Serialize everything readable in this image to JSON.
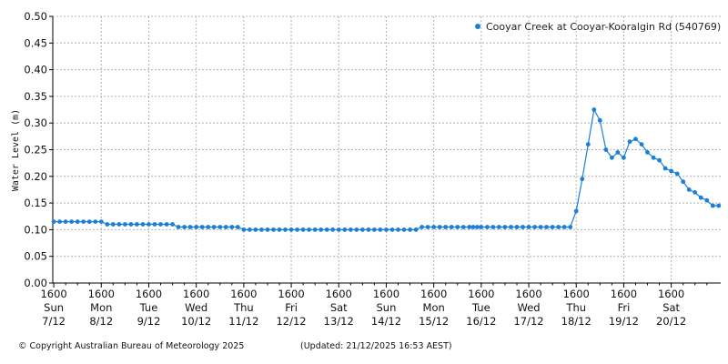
{
  "colors": {
    "series": "#1a7fd9",
    "grid": "#b4b4b4",
    "axis": "#000000"
  },
  "legend": {
    "label": "Cooyar Creek at Cooyar-Kooralgin Rd (540769)",
    "icon": "dot-icon"
  },
  "footer": {
    "copyright": "© Copyright Australian Bureau of Meteorology 2025",
    "updated": "(Updated: 21/12/2025 16:53 AEST)"
  },
  "chart_data": {
    "type": "line",
    "title": "",
    "xlabel": "",
    "ylabel": "Water Level (m)",
    "ylim": [
      0,
      0.5
    ],
    "yticks": [
      "0.00",
      "0.05",
      "0.10",
      "0.15",
      "0.20",
      "0.25",
      "0.30",
      "0.35",
      "0.40",
      "0.45",
      "0.50"
    ],
    "xlim_hours": [
      -0.5,
      337
    ],
    "x_unit": "hours from 7/12 1600",
    "xticks": [
      {
        "time": "1600",
        "day": "Sun",
        "date": "7/12"
      },
      {
        "time": "1600",
        "day": "Mon",
        "date": "8/12"
      },
      {
        "time": "1600",
        "day": "Tue",
        "date": "9/12"
      },
      {
        "time": "1600",
        "day": "Wed",
        "date": "10/12"
      },
      {
        "time": "1600",
        "day": "Thu",
        "date": "11/12"
      },
      {
        "time": "1600",
        "day": "Fri",
        "date": "12/12"
      },
      {
        "time": "1600",
        "day": "Sat",
        "date": "13/12"
      },
      {
        "time": "1600",
        "day": "Sun",
        "date": "14/12"
      },
      {
        "time": "1600",
        "day": "Mon",
        "date": "15/12"
      },
      {
        "time": "1600",
        "day": "Tue",
        "date": "16/12"
      },
      {
        "time": "1600",
        "day": "Wed",
        "date": "17/12"
      },
      {
        "time": "1600",
        "day": "Thu",
        "date": "18/12"
      },
      {
        "time": "1600",
        "day": "Fri",
        "date": "19/12"
      },
      {
        "time": "1600",
        "day": "Sat",
        "date": "20/12"
      }
    ],
    "grid": true,
    "legend_position": "top-right",
    "series": [
      {
        "name": "Cooyar Creek at Cooyar-Kooralgin Rd (540769)",
        "x": [
          0,
          3,
          6,
          9,
          12,
          15,
          18,
          21,
          24,
          27,
          30,
          33,
          36,
          39,
          42,
          45,
          48,
          51,
          54,
          57,
          60,
          63,
          66,
          69,
          72,
          75,
          78,
          81,
          84,
          87,
          90,
          93,
          96,
          99,
          102,
          105,
          108,
          111,
          114,
          117,
          120,
          123,
          126,
          129,
          132,
          135,
          138,
          141,
          144,
          147,
          150,
          153,
          156,
          159,
          162,
          165,
          168,
          171,
          174,
          177,
          180,
          183,
          186,
          189,
          192,
          195,
          198,
          201,
          204,
          207,
          210,
          212,
          214,
          216,
          219,
          222,
          225,
          228,
          231,
          234,
          237,
          240,
          243,
          246,
          249,
          252,
          255,
          258,
          261,
          264,
          267,
          270,
          273,
          276,
          279,
          282,
          285,
          288,
          291,
          294,
          297,
          300,
          303,
          306,
          309,
          312,
          315,
          318,
          321,
          324,
          327,
          330,
          333,
          336
        ],
        "y": [
          0.115,
          0.115,
          0.115,
          0.115,
          0.115,
          0.115,
          0.115,
          0.115,
          0.115,
          0.11,
          0.11,
          0.11,
          0.11,
          0.11,
          0.11,
          0.11,
          0.11,
          0.11,
          0.11,
          0.11,
          0.11,
          0.105,
          0.105,
          0.105,
          0.105,
          0.105,
          0.105,
          0.105,
          0.105,
          0.105,
          0.105,
          0.105,
          0.1,
          0.1,
          0.1,
          0.1,
          0.1,
          0.1,
          0.1,
          0.1,
          0.1,
          0.1,
          0.1,
          0.1,
          0.1,
          0.1,
          0.1,
          0.1,
          0.1,
          0.1,
          0.1,
          0.1,
          0.1,
          0.1,
          0.1,
          0.1,
          0.1,
          0.1,
          0.1,
          0.1,
          0.1,
          0.1,
          0.105,
          0.105,
          0.105,
          0.105,
          0.105,
          0.105,
          0.105,
          0.105,
          0.105,
          0.105,
          0.105,
          0.105,
          0.105,
          0.105,
          0.105,
          0.105,
          0.105,
          0.105,
          0.105,
          0.105,
          0.105,
          0.105,
          0.105,
          0.105,
          0.105,
          0.105,
          0.105,
          0.135,
          0.195,
          0.26,
          0.325,
          0.305,
          0.25,
          0.235,
          0.245,
          0.235,
          0.265,
          0.27,
          0.26,
          0.245,
          0.235,
          0.23,
          0.215,
          0.21,
          0.205,
          0.19,
          0.175,
          0.17,
          0.16,
          0.155,
          0.145,
          0.145
        ]
      }
    ]
  }
}
